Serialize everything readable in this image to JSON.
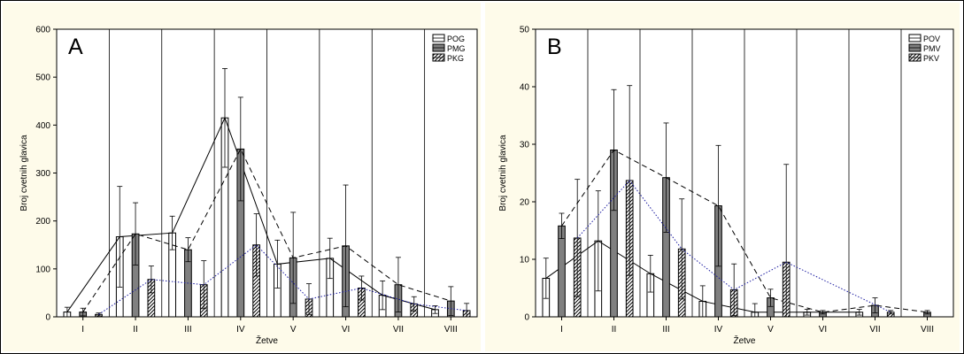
{
  "colors": {
    "background": "#fefbea",
    "plot": "#ffffff",
    "ink": "#000000",
    "dotted_series": "#1a1aa0",
    "swatch_O": "#ffffff",
    "swatch_M": "#808080",
    "swatch_K": "#ffffff"
  },
  "chart_data": [
    {
      "type": "bar",
      "panel_label": "A",
      "xlabel": "Žetve",
      "ylabel": "Broj cvetnih glavica",
      "categories": [
        "I",
        "II",
        "III",
        "IV",
        "V",
        "VI",
        "VII",
        "VIII"
      ],
      "ylim": [
        0,
        600
      ],
      "yticks": [
        0,
        100,
        200,
        300,
        400,
        500,
        600
      ],
      "legend_position": "top-right",
      "grid": {
        "vertical_category_separators": true,
        "horizontal": false
      },
      "series": [
        {
          "name": "POG",
          "pattern": "open",
          "line": "solid",
          "values": [
            10,
            167,
            175,
            415,
            110,
            122,
            45,
            15
          ],
          "err": [
            10,
            105,
            35,
            103,
            50,
            42,
            30,
            8
          ]
        },
        {
          "name": "PMG",
          "pattern": "gray",
          "line": "dashed",
          "values": [
            10,
            173,
            140,
            350,
            123,
            148,
            67,
            33
          ],
          "err": [
            8,
            65,
            25,
            108,
            95,
            127,
            57,
            30
          ]
        },
        {
          "name": "PKG",
          "pattern": "hatched",
          "line": "dotted",
          "values": [
            5,
            78,
            67,
            150,
            37,
            60,
            27,
            13
          ],
          "err": [
            3,
            28,
            50,
            65,
            32,
            25,
            15,
            15
          ]
        }
      ]
    },
    {
      "type": "bar",
      "panel_label": "B",
      "xlabel": "Žetve",
      "ylabel": "Broj cvetnih glavica",
      "categories": [
        "I",
        "II",
        "III",
        "IV",
        "V",
        "VI",
        "VII",
        "VIII"
      ],
      "ylim": [
        0,
        50
      ],
      "yticks": [
        0,
        10,
        20,
        30,
        40,
        50
      ],
      "legend_position": "top-right",
      "grid": {
        "vertical_category_separators": true,
        "horizontal": false
      },
      "series": [
        {
          "name": "POV",
          "pattern": "open",
          "line": "solid",
          "values": [
            6.7,
            13.2,
            7.5,
            2.7,
            0.8,
            0.8,
            0.8,
            null
          ],
          "err": [
            3.5,
            8.7,
            3.2,
            2.7,
            1.5,
            0.5,
            0.5,
            null
          ]
        },
        {
          "name": "PMV",
          "pattern": "gray",
          "line": "dashed",
          "values": [
            15.8,
            29,
            24.2,
            19.3,
            3.3,
            0.8,
            2,
            0.8
          ],
          "err": [
            2.2,
            10.5,
            9.5,
            10.5,
            1.5,
            0.3,
            1.3,
            0.3
          ]
        },
        {
          "name": "PKV",
          "pattern": "hatched",
          "line": "dotted",
          "values": [
            13.7,
            23.7,
            11.8,
            4.7,
            9.5,
            null,
            0.8,
            null
          ],
          "err": [
            10.2,
            16.5,
            8.7,
            4.5,
            17,
            null,
            0.3,
            null
          ]
        }
      ]
    }
  ]
}
